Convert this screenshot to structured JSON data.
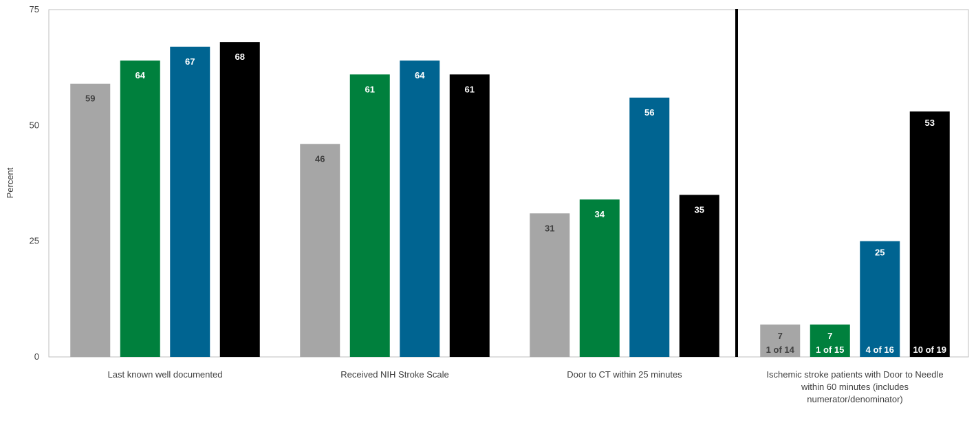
{
  "chart_data": {
    "type": "bar",
    "ylabel": "Percent",
    "ylim": [
      0,
      75
    ],
    "yticks": [
      0,
      25,
      50,
      75
    ],
    "grid": false,
    "categories": [
      {
        "lines": [
          "Last known well documented"
        ]
      },
      {
        "lines": [
          "Received NIH Stroke Scale"
        ]
      },
      {
        "lines": [
          "Door to CT within 25 minutes"
        ]
      },
      {
        "lines": [
          "Ischemic stroke patients with Door to Needle",
          "within 60 minutes (includes",
          "numerator/denominator)"
        ]
      }
    ],
    "series": [
      {
        "color": "#a6a6a6",
        "label_color": "#404040",
        "values": [
          59,
          46,
          31,
          7
        ],
        "fractions": [
          "",
          "",
          "",
          "1 of 14"
        ]
      },
      {
        "color": "#00803d",
        "label_color": "#ffffff",
        "values": [
          64,
          61,
          34,
          7
        ],
        "fractions": [
          "",
          "",
          "",
          "1 of 15"
        ]
      },
      {
        "color": "#006491",
        "label_color": "#ffffff",
        "values": [
          67,
          64,
          56,
          25
        ],
        "fractions": [
          "",
          "",
          "",
          "4 of 16"
        ]
      },
      {
        "color": "#000000",
        "label_color": "#ffffff",
        "values": [
          68,
          61,
          35,
          53
        ],
        "fractions": [
          "",
          "",
          "",
          "10 of 19"
        ]
      }
    ],
    "separator_after_category": 2
  }
}
